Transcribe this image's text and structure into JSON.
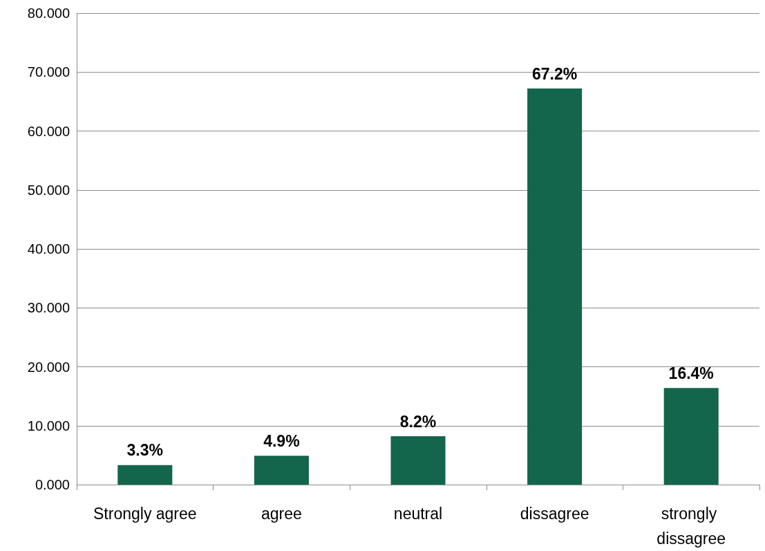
{
  "chart_data": {
    "type": "bar",
    "categories": [
      "Strongly agree",
      "agree",
      "neutral",
      "dissagree",
      "strongly dissagree"
    ],
    "values": [
      3.3,
      4.9,
      8.2,
      67.2,
      16.4
    ],
    "value_labels": [
      "3.3%",
      "4.9%",
      "8.2%",
      "67.2%",
      "16.4%"
    ],
    "color": "#13654c",
    "ylim": [
      0,
      80
    ],
    "yticks": [
      {
        "value": 0,
        "label": "0.000"
      },
      {
        "value": 10,
        "label": "10.000"
      },
      {
        "value": 20,
        "label": "20.000"
      },
      {
        "value": 30,
        "label": "30.000"
      },
      {
        "value": 40,
        "label": "40.000"
      },
      {
        "value": 50,
        "label": "50.000"
      },
      {
        "value": 60,
        "label": "60.000"
      },
      {
        "value": 70,
        "label": "70.000"
      },
      {
        "value": 80,
        "label": "80.000"
      }
    ],
    "grid": "y"
  }
}
